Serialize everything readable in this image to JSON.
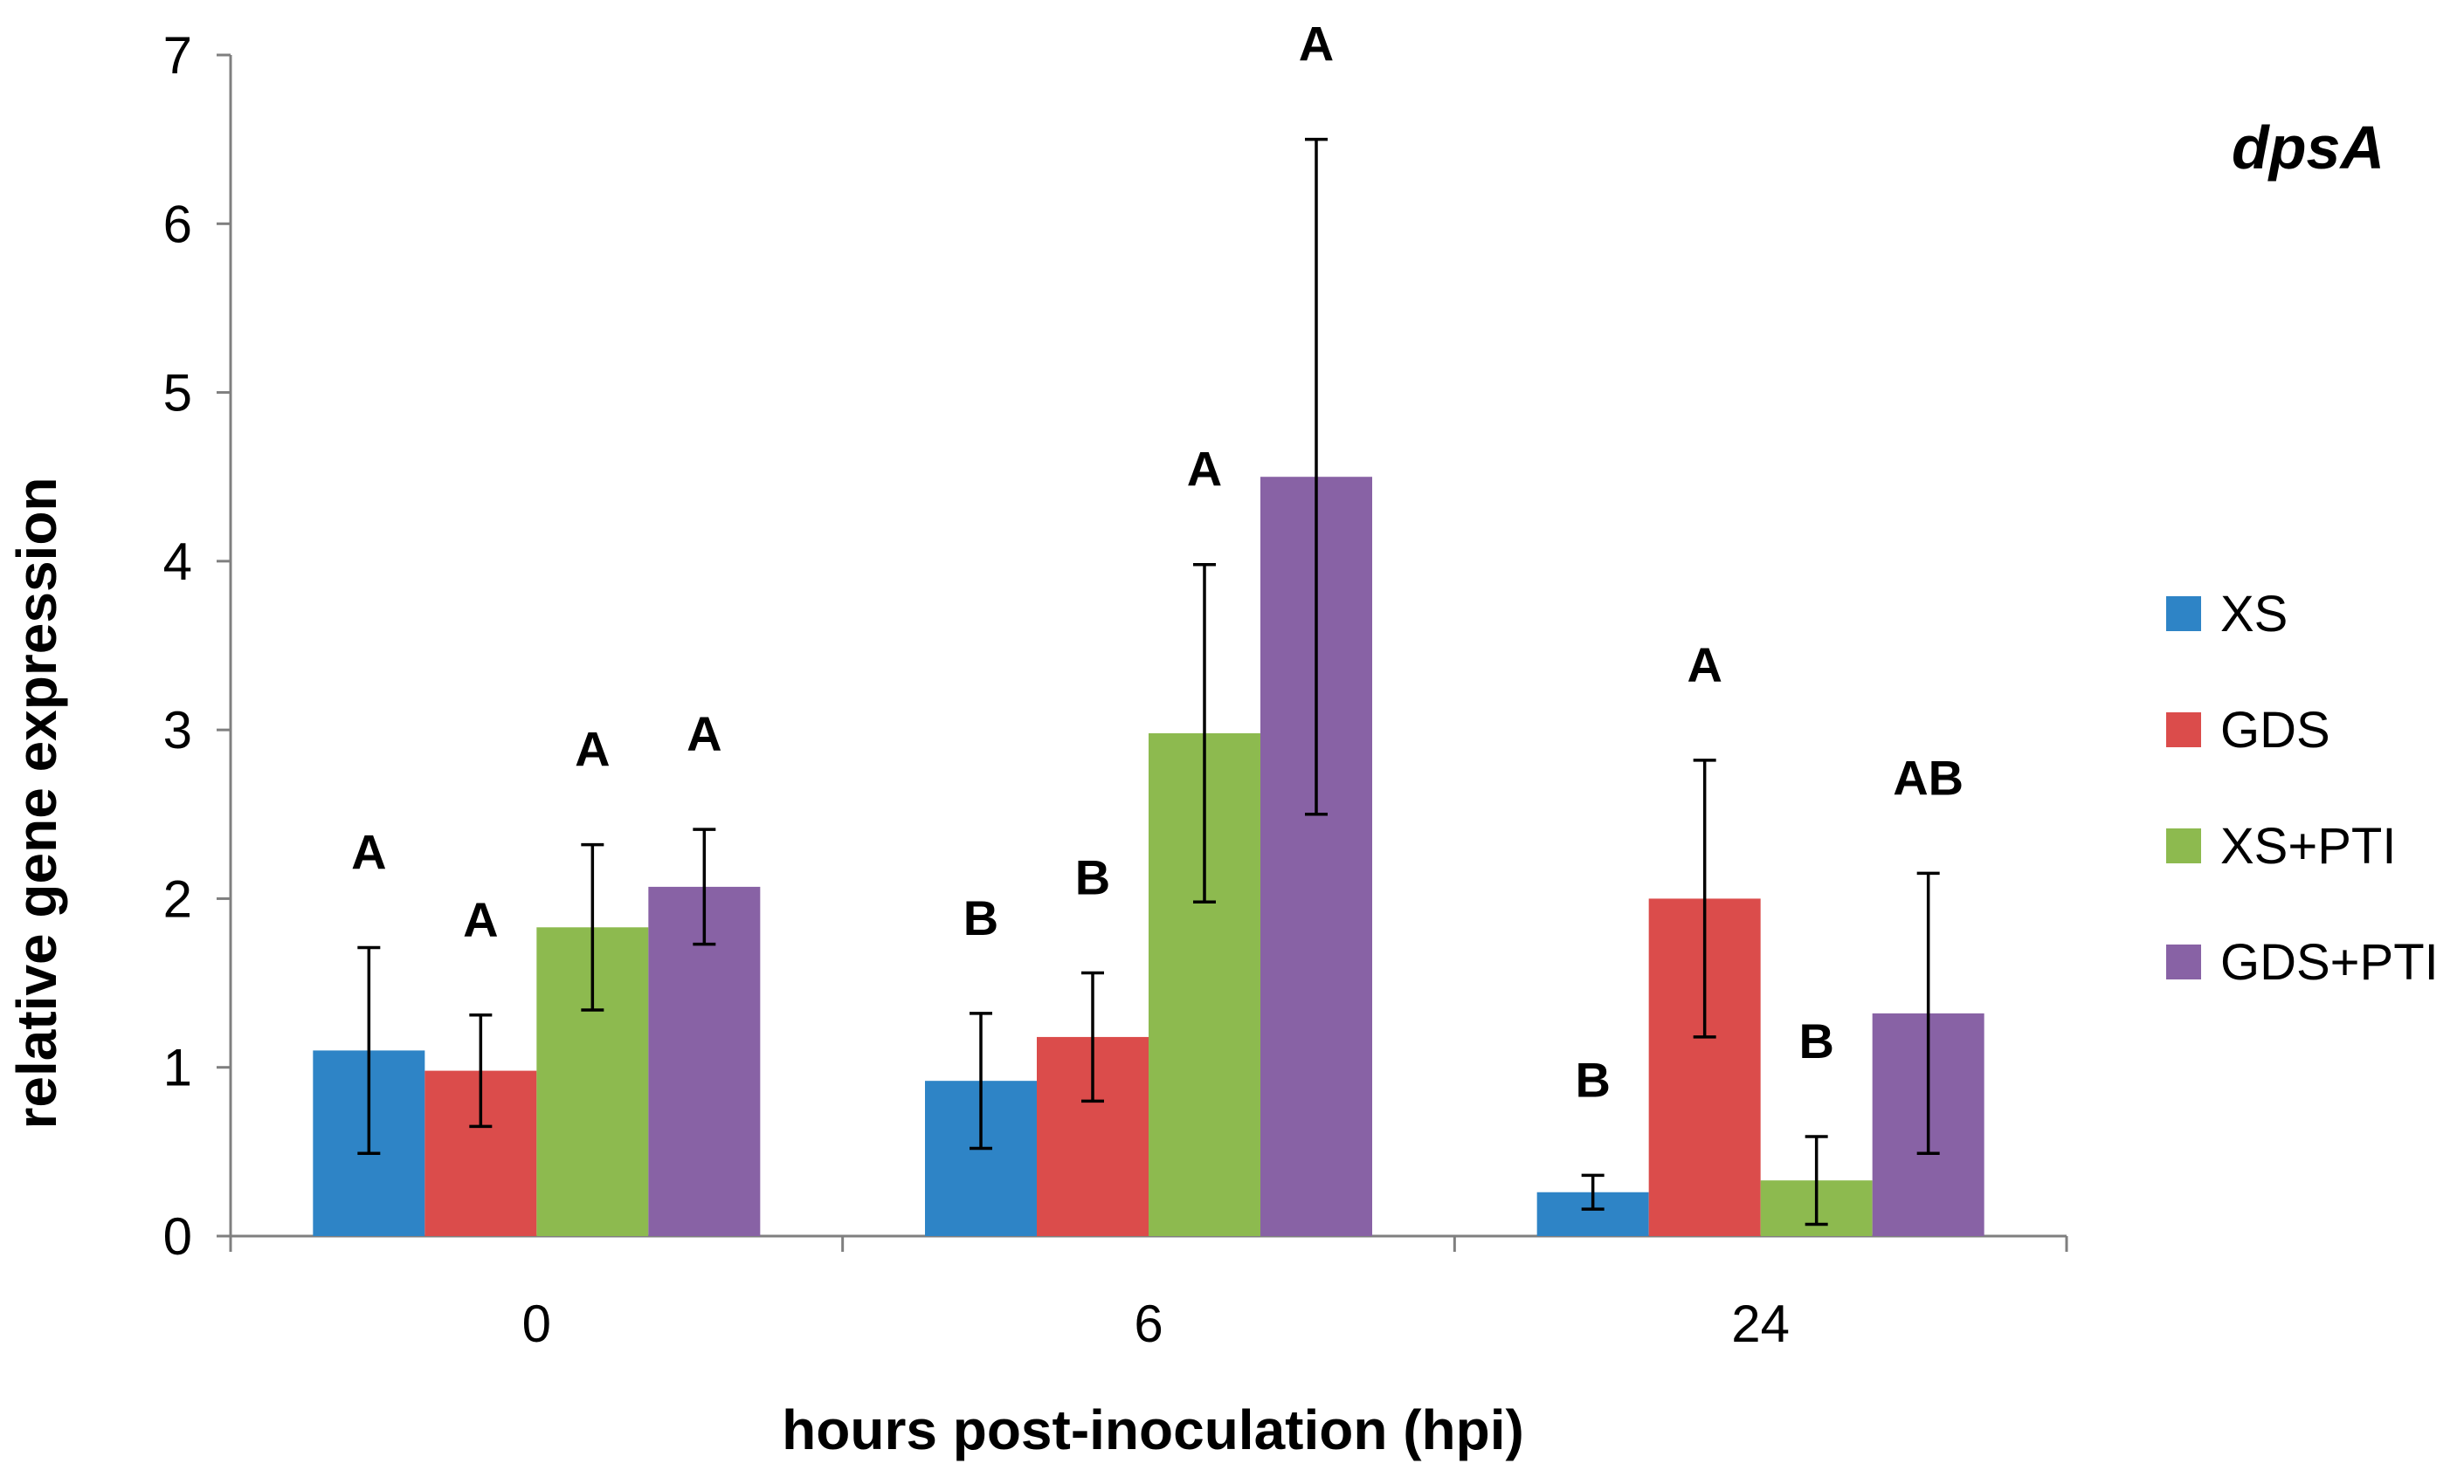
{
  "chart_data": {
    "type": "bar",
    "title": "dpsA",
    "xlabel": "hours post-inoculation (hpi)",
    "ylabel": "relative gene expression",
    "ylim": [
      0,
      7
    ],
    "yticks": [
      "0",
      "1",
      "2",
      "3",
      "4",
      "5",
      "6",
      "7"
    ],
    "categories": [
      "0",
      "6",
      "24"
    ],
    "legend_position": "right",
    "grid": false,
    "series": [
      {
        "name": "XS",
        "color": "#2E84C6",
        "values": [
          1.1,
          0.92,
          0.26
        ],
        "errors": [
          0.61,
          0.4,
          0.1
        ],
        "significance": [
          "A",
          "B",
          "B"
        ]
      },
      {
        "name": "GDS",
        "color": "#DB4C4B",
        "values": [
          0.98,
          1.18,
          2.0
        ],
        "errors": [
          0.33,
          0.38,
          0.82
        ],
        "significance": [
          "A",
          "B",
          "A"
        ]
      },
      {
        "name": "XS+PTI",
        "color": "#8DBA4F",
        "values": [
          1.83,
          2.98,
          0.33
        ],
        "errors": [
          0.49,
          1.0,
          0.26
        ],
        "significance": [
          "A",
          "A",
          "B"
        ]
      },
      {
        "name": "GDS+PTI",
        "color": "#8862A5",
        "values": [
          2.07,
          4.5,
          1.32
        ],
        "errors": [
          0.34,
          2.0,
          0.83
        ],
        "significance": [
          "A",
          "A",
          "AB"
        ]
      }
    ]
  }
}
